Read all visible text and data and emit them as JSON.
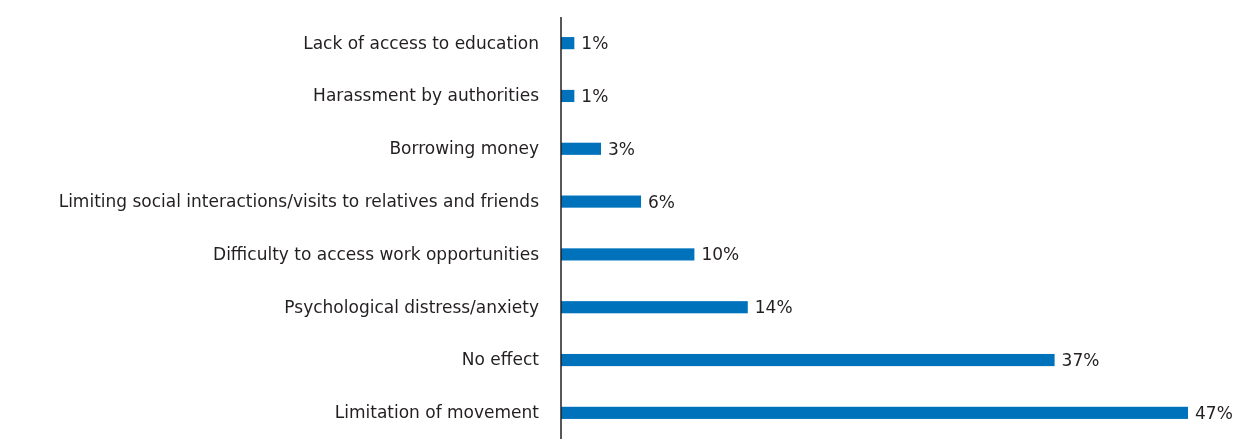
{
  "chart_data": {
    "type": "bar",
    "orientation": "horizontal",
    "categories": [
      "Lack of access to education",
      "Harassment by authorities",
      "Borrowing money",
      "Limiting social interactions/visits to relatives and friends",
      "Difficulty to access work opportunities",
      "Psychological distress/anxiety",
      "No effect",
      "Limitation of movement"
    ],
    "values": [
      1,
      1,
      3,
      6,
      10,
      14,
      37,
      47
    ],
    "value_labels": [
      "1%",
      "1%",
      "3%",
      "6%",
      "10%",
      "14%",
      "37%",
      "47%"
    ],
    "color": "#0072bc"
  }
}
